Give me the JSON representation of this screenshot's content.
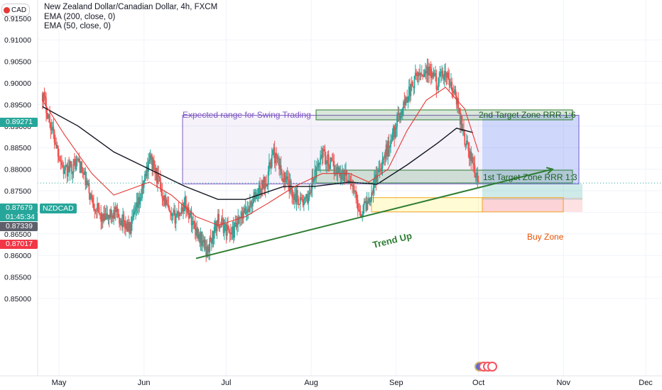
{
  "header": {
    "title": "New Zealand Dollar/Canadian Dollar, 4h, FXCM",
    "ema200": "EMA (200, close, 0)",
    "ema50": "EMA (50, close, 0)",
    "currency_badge": "CAD"
  },
  "price_badges": {
    "ema_value": "0.89271",
    "last_price": "0.87679",
    "countdown": "01:45:34",
    "symbol": "NZDCAD",
    "entry": "0.87339",
    "stop": "0.87017"
  },
  "colors": {
    "candle_up": "#26a69a",
    "candle_down": "#ef5350",
    "ema200": "#131722",
    "ema50": "#e53935",
    "range_box": "#7e57c2",
    "target_box": "#2e7d32",
    "trend_line": "#2e7d32",
    "buy_zone_text": "#e65100",
    "badge_teal": "#26a69a",
    "badge_gray": "#5d606b",
    "badge_red": "#f23645"
  },
  "annotations": {
    "range_label": "Expected range for Swing Trading",
    "target2": "2nd Target Zone RRR 1:6",
    "target1": "1st Target Zone RRR 1:3",
    "trend": "Trend Up",
    "buy_zone": "Buy Zone"
  },
  "chart_data": {
    "type": "candlestick",
    "title": "New Zealand Dollar/Canadian Dollar, 4h, FXCM",
    "timeframe": "4h",
    "x_ticks": [
      "May",
      "Jun",
      "Jul",
      "Aug",
      "Sep",
      "Oct",
      "Nov",
      "Dec"
    ],
    "y_ticks": [
      "0.85000",
      "0.85500",
      "0.86000",
      "0.86500",
      "0.87000",
      "0.87500",
      "0.88000",
      "0.88500",
      "0.89000",
      "0.89500",
      "0.90000",
      "0.90500",
      "0.91000"
    ],
    "y_top_partial": "0.91500",
    "ylim": [
      0.847,
      0.917
    ],
    "price_path": [
      [
        "Apr 25",
        0.8975
      ],
      [
        "Apr 29",
        0.888
      ],
      [
        "May 3",
        0.879
      ],
      [
        "May 8",
        0.882
      ],
      [
        "May 13",
        0.873
      ],
      [
        "May 17",
        0.868
      ],
      [
        "May 21",
        0.87
      ],
      [
        "May 27",
        0.866
      ],
      [
        "May 31",
        0.874
      ],
      [
        "Jun 3",
        0.883
      ],
      [
        "Jun 7",
        0.876
      ],
      [
        "Jun 11",
        0.868
      ],
      [
        "Jun 16",
        0.872
      ],
      [
        "Jun 20",
        0.866
      ],
      [
        "Jun 24",
        0.861
      ],
      [
        "Jun 28",
        0.868
      ],
      [
        "Jul 3",
        0.865
      ],
      [
        "Jul 8",
        0.87
      ],
      [
        "Jul 12",
        0.874
      ],
      [
        "Jul 16",
        0.878
      ],
      [
        "Jul 18",
        0.884
      ],
      [
        "Jul 22",
        0.878
      ],
      [
        "Jul 26",
        0.874
      ],
      [
        "Jul 30",
        0.872
      ],
      [
        "Aug 2",
        0.878
      ],
      [
        "Aug 5",
        0.884
      ],
      [
        "Aug 8",
        0.881
      ],
      [
        "Aug 12",
        0.879
      ],
      [
        "Aug 15",
        0.878
      ],
      [
        "Aug 19",
        0.87
      ],
      [
        "Aug 22",
        0.873
      ],
      [
        "Aug 25",
        0.879
      ],
      [
        "Aug 29",
        0.885
      ],
      [
        "Sep 2",
        0.892
      ],
      [
        "Sep 5",
        0.897
      ],
      [
        "Sep 9",
        0.902
      ],
      [
        "Sep 12",
        0.903
      ],
      [
        "Sep 16",
        0.9
      ],
      [
        "Sep 19",
        0.902
      ],
      [
        "Sep 23",
        0.896
      ],
      [
        "Sep 26",
        0.887
      ],
      [
        "Sep 29",
        0.881
      ],
      [
        "Oct 1",
        0.8768
      ]
    ],
    "ema200_path": [
      [
        "Apr 25",
        0.8945
      ],
      [
        "May 8",
        0.89
      ],
      [
        "May 21",
        0.884
      ],
      [
        "Jun 3",
        0.88
      ],
      [
        "Jun 16",
        0.876
      ],
      [
        "Jun 28",
        0.873
      ],
      [
        "Jul 8",
        0.873
      ],
      [
        "Jul 22",
        0.876
      ],
      [
        "Aug 2",
        0.876
      ],
      [
        "Aug 15",
        0.877
      ],
      [
        "Aug 25",
        0.8765
      ],
      [
        "Sep 5",
        0.881
      ],
      [
        "Sep 16",
        0.886
      ],
      [
        "Sep 23",
        0.8895
      ],
      [
        "Sep 29",
        0.8885
      ]
    ],
    "ema50_path": [
      [
        "Apr 25",
        0.896
      ],
      [
        "May 3",
        0.888
      ],
      [
        "May 13",
        0.879
      ],
      [
        "May 21",
        0.874
      ],
      [
        "Jun 3",
        0.877
      ],
      [
        "Jun 11",
        0.874
      ],
      [
        "Jun 20",
        0.869
      ],
      [
        "Jun 28",
        0.867
      ],
      [
        "Jul 8",
        0.869
      ],
      [
        "Jul 16",
        0.872
      ],
      [
        "Jul 26",
        0.876
      ],
      [
        "Aug 5",
        0.879
      ],
      [
        "Aug 15",
        0.879
      ],
      [
        "Aug 22",
        0.877
      ],
      [
        "Aug 29",
        0.88
      ],
      [
        "Sep 5",
        0.889
      ],
      [
        "Sep 12",
        0.896
      ],
      [
        "Sep 19",
        0.899
      ],
      [
        "Sep 26",
        0.894
      ],
      [
        "Oct 1",
        0.884
      ]
    ],
    "zones": {
      "expected_range": [
        0.8766,
        0.8925
      ],
      "target2": [
        0.8941,
        0.895
      ],
      "target1": [
        0.8816,
        0.8827
      ],
      "buy_zone": [
        0.8701,
        0.8734
      ]
    },
    "trend_line": [
      [
        "Jun 20",
        0.8593
      ],
      [
        "Oct 28",
        0.88
      ]
    ],
    "last_price": 0.87679
  }
}
